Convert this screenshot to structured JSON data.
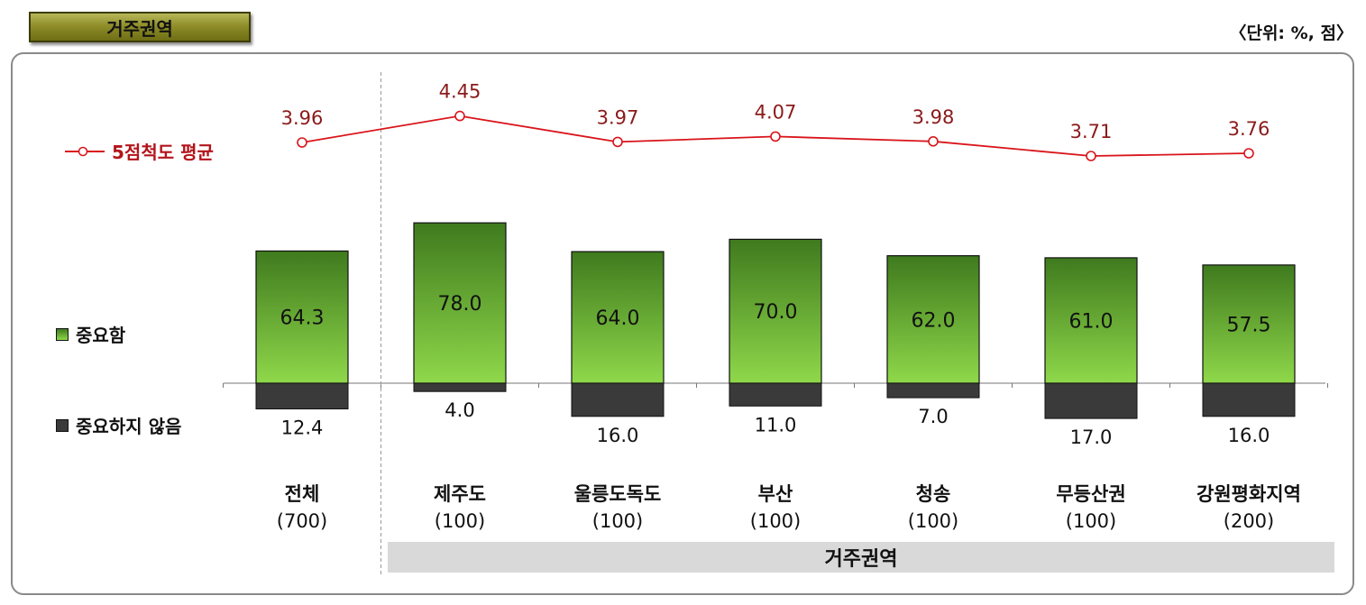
{
  "header": {
    "badge_label": "거주권역",
    "unit_note": "〈단위: %, 점〉"
  },
  "legend": {
    "line": "5점척도 평균",
    "important": "중요함",
    "not_important": "중요하지 않음"
  },
  "group_label": "거주권역",
  "colors": {
    "bar_top": "#3f7a1e",
    "bar_bottom": "#8fd84a",
    "negative_bar": "#3a3a3a",
    "line": "#d9141b",
    "line_labels": "#8b1a1a"
  },
  "chart_data": {
    "type": "bar",
    "categories": [
      {
        "name": "전체",
        "n": "(700)"
      },
      {
        "name": "제주도",
        "n": "(100)"
      },
      {
        "name": "울릉도독도",
        "n": "(100)"
      },
      {
        "name": "부산",
        "n": "(100)"
      },
      {
        "name": "청송",
        "n": "(100)"
      },
      {
        "name": "무등산권",
        "n": "(100)"
      },
      {
        "name": "강원평화지역",
        "n": "(200)"
      }
    ],
    "series": [
      {
        "name": "중요함",
        "values": [
          64.3,
          78.0,
          64.0,
          70.0,
          62.0,
          61.0,
          57.5
        ],
        "labels": [
          "64.3",
          "78.0",
          "64.0",
          "70.0",
          "62.0",
          "61.0",
          "57.5"
        ]
      },
      {
        "name": "중요하지 않음",
        "values": [
          12.4,
          4.0,
          16.0,
          11.0,
          7.0,
          17.0,
          16.0
        ],
        "labels": [
          "12.4",
          "4.0",
          "16.0",
          "11.0",
          "7.0",
          "17.0",
          "16.0"
        ]
      },
      {
        "name": "5점척도 평균",
        "type": "line",
        "values": [
          3.96,
          4.45,
          3.97,
          4.07,
          3.98,
          3.71,
          3.76
        ],
        "labels": [
          "3.96",
          "4.45",
          "3.97",
          "4.07",
          "3.98",
          "3.71",
          "3.76"
        ]
      }
    ]
  }
}
